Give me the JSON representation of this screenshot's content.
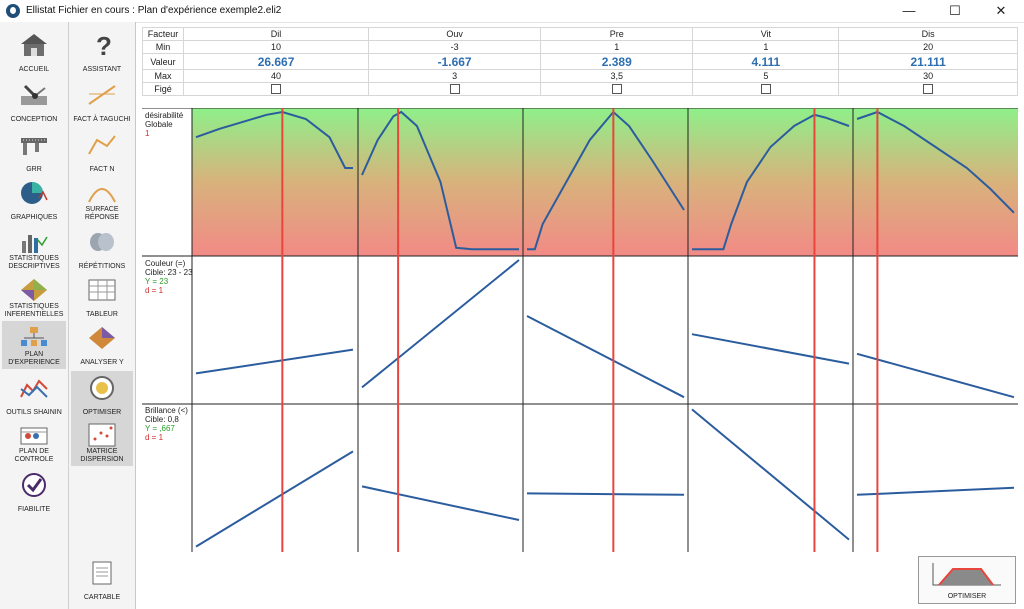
{
  "window": {
    "title": "Ellistat Fichier en cours : Plan d'expérience exemple2.eli2"
  },
  "nav1": [
    {
      "label": "ACCUEIL",
      "icon": "house-icon"
    },
    {
      "label": "CONCEPTION",
      "icon": "conception-icon"
    },
    {
      "label": "GRR",
      "icon": "caliper-icon"
    },
    {
      "label": "GRAPHIQUES",
      "icon": "pie-chart-icon"
    },
    {
      "label": "STATISTIQUES DESCRIPTIVES",
      "icon": "bar-chart-icon"
    },
    {
      "label": "STATISTIQUES INFERENTIELLES",
      "icon": "surface-icon"
    },
    {
      "label": "PLAN D'EXPERIENCE",
      "icon": "tree-icon"
    },
    {
      "label": "OUTILS SHAININ",
      "icon": "shainin-icon"
    },
    {
      "label": "PLAN DE CONTROLE",
      "icon": "control-plan-icon"
    },
    {
      "label": "FIABILITE",
      "icon": "checkmark-icon"
    }
  ],
  "nav2": [
    {
      "label": "ASSISTANT",
      "icon": "question-icon"
    },
    {
      "label": "FACT à TAGUCHI",
      "icon": "taguchi-icon"
    },
    {
      "label": "FACT N",
      "icon": "fact-n-icon"
    },
    {
      "label": "SURFACE RÉPONSE",
      "icon": "surface-response-icon"
    },
    {
      "label": "RÉPÉTITIONS",
      "icon": "repetitions-icon"
    },
    {
      "label": "TABLEUR",
      "icon": "spreadsheet-icon"
    },
    {
      "label": "ANALYSER Y",
      "icon": "analyze-icon"
    },
    {
      "label": "OPTIMISER",
      "icon": "target-icon"
    },
    {
      "label": "MATRICE DISPERSION",
      "icon": "scatter-matrix-icon"
    },
    {
      "label": "CARTABLE",
      "icon": "document-icon"
    }
  ],
  "factors_table": {
    "row_labels": {
      "factor": "Facteur",
      "min": "Min",
      "value": "Valeur",
      "max": "Max",
      "fixed": "Figé"
    },
    "factors": [
      {
        "name": "Dil",
        "min": "10",
        "value": "26.667",
        "max": "40"
      },
      {
        "name": "Ouv",
        "min": "-3",
        "value": "-1.667",
        "max": "3"
      },
      {
        "name": "Pre",
        "min": "1",
        "value": "2.389",
        "max": "3,5"
      },
      {
        "name": "Vit",
        "min": "1",
        "value": "4.111",
        "max": "5"
      },
      {
        "name": "Dis",
        "min": "20",
        "value": "21.111",
        "max": "30"
      }
    ]
  },
  "responses": [
    {
      "title": "désirabilité Globale",
      "subtitle": "1"
    },
    {
      "title": "Couleur (=)",
      "cible": "Cible: 23 - 23",
      "y": "Y = 23",
      "d": "d = 1"
    },
    {
      "title": "Brillance (<)",
      "cible": "Cible: 0,8",
      "y": "Y = ,667",
      "d": "d = 1"
    }
  ],
  "chart_data": {
    "type": "line",
    "factors": [
      "Dil",
      "Ouv",
      "Pre",
      "Vit",
      "Dis"
    ],
    "current_value_marker_fraction": [
      0.55,
      0.23,
      0.55,
      0.78,
      0.13
    ],
    "desirability_curves": [
      [
        [
          0,
          0.82
        ],
        [
          0.15,
          0.88
        ],
        [
          0.3,
          0.93
        ],
        [
          0.45,
          0.98
        ],
        [
          0.55,
          1.0
        ],
        [
          0.7,
          0.95
        ],
        [
          0.85,
          0.82
        ],
        [
          0.95,
          0.6
        ],
        [
          1,
          0.6
        ]
      ],
      [
        [
          0,
          0.55
        ],
        [
          0.1,
          0.8
        ],
        [
          0.2,
          0.97
        ],
        [
          0.25,
          1.0
        ],
        [
          0.35,
          0.9
        ],
        [
          0.5,
          0.5
        ],
        [
          0.6,
          0.03
        ],
        [
          0.7,
          0.02
        ],
        [
          1,
          0.02
        ]
      ],
      [
        [
          0,
          0.02
        ],
        [
          0.05,
          0.02
        ],
        [
          0.1,
          0.2
        ],
        [
          0.25,
          0.5
        ],
        [
          0.4,
          0.8
        ],
        [
          0.55,
          1.0
        ],
        [
          0.65,
          0.9
        ],
        [
          0.8,
          0.65
        ],
        [
          1,
          0.3
        ]
      ],
      [
        [
          0,
          0.02
        ],
        [
          0.2,
          0.02
        ],
        [
          0.25,
          0.2
        ],
        [
          0.35,
          0.5
        ],
        [
          0.5,
          0.75
        ],
        [
          0.65,
          0.9
        ],
        [
          0.78,
          0.98
        ],
        [
          0.85,
          0.96
        ],
        [
          1,
          0.9
        ]
      ],
      [
        [
          0,
          0.95
        ],
        [
          0.13,
          1.0
        ],
        [
          0.3,
          0.9
        ],
        [
          0.5,
          0.75
        ],
        [
          0.7,
          0.6
        ],
        [
          0.85,
          0.45
        ],
        [
          1,
          0.28
        ]
      ]
    ],
    "couleur_lines": [
      [
        0,
        0.19,
        1,
        0.36
      ],
      [
        0,
        0.09,
        1,
        1.0
      ],
      [
        0,
        0.6,
        1,
        0.02
      ],
      [
        0,
        0.47,
        1,
        0.26
      ],
      [
        0,
        0.33,
        1,
        0.02
      ]
    ],
    "brillance_lines": [
      [
        0,
        0.01,
        1,
        0.69
      ],
      [
        0,
        0.44,
        1,
        0.2
      ],
      [
        0,
        0.39,
        1,
        0.38
      ],
      [
        0,
        0.99,
        1,
        0.06
      ],
      [
        0,
        0.38,
        1,
        0.43
      ]
    ]
  },
  "optimize_button": {
    "label": "OPTIMISER"
  },
  "colors": {
    "accent": "#2e6fb0",
    "curve": "#2b5d9e",
    "marker": "#e8453c",
    "good": "#8ef08a",
    "bad": "#f28a86"
  }
}
